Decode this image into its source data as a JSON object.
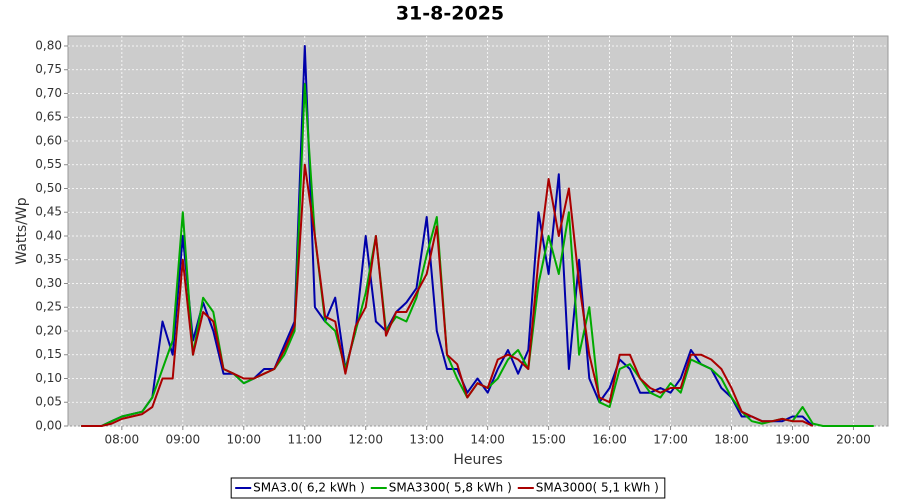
{
  "chart_data": {
    "type": "line",
    "title": "31-8-2025",
    "x_label": "Heures",
    "y_label": "Watts/Wp",
    "grid": true,
    "legend": "bottom",
    "xlim": [
      427,
      1234
    ],
    "ylim": [
      0,
      0.821
    ],
    "xticks": [
      {
        "value": 480,
        "label": "08:00"
      },
      {
        "value": 540,
        "label": "09:00"
      },
      {
        "value": 600,
        "label": "10:00"
      },
      {
        "value": 660,
        "label": "11:00"
      },
      {
        "value": 720,
        "label": "12:00"
      },
      {
        "value": 780,
        "label": "13:00"
      },
      {
        "value": 840,
        "label": "14:00"
      },
      {
        "value": 900,
        "label": "15:00"
      },
      {
        "value": 960,
        "label": "16:00"
      },
      {
        "value": 1020,
        "label": "17:00"
      },
      {
        "value": 1080,
        "label": "18:00"
      },
      {
        "value": 1140,
        "label": "19:00"
      },
      {
        "value": 1200,
        "label": "20:00"
      }
    ],
    "yticks": [
      {
        "value": 0,
        "label": "0,00"
      },
      {
        "value": 0.05,
        "label": "0,05"
      },
      {
        "value": 0.1,
        "label": "0,10"
      },
      {
        "value": 0.15,
        "label": "0,15"
      },
      {
        "value": 0.2,
        "label": "0,20"
      },
      {
        "value": 0.25,
        "label": "0,25"
      },
      {
        "value": 0.3,
        "label": "0,30"
      },
      {
        "value": 0.35,
        "label": "0,35"
      },
      {
        "value": 0.4,
        "label": "0,40"
      },
      {
        "value": 0.45,
        "label": "0,45"
      },
      {
        "value": 0.5,
        "label": "0,50"
      },
      {
        "value": 0.55,
        "label": "0,55"
      },
      {
        "value": 0.6,
        "label": "0,60"
      },
      {
        "value": 0.65,
        "label": "0,65"
      },
      {
        "value": 0.7,
        "label": "0,70"
      },
      {
        "value": 0.75,
        "label": "0,75"
      },
      {
        "value": 0.8,
        "label": "0,80"
      }
    ],
    "x": [
      440,
      450,
      460,
      470,
      480,
      490,
      500,
      510,
      520,
      530,
      540,
      550,
      560,
      570,
      580,
      590,
      600,
      610,
      620,
      630,
      640,
      650,
      660,
      670,
      680,
      690,
      700,
      710,
      720,
      730,
      740,
      750,
      760,
      770,
      780,
      790,
      800,
      810,
      820,
      830,
      840,
      850,
      860,
      870,
      880,
      890,
      900,
      910,
      920,
      930,
      940,
      950,
      960,
      970,
      980,
      990,
      1000,
      1010,
      1020,
      1030,
      1040,
      1050,
      1060,
      1070,
      1080,
      1090,
      1100,
      1110,
      1120,
      1130,
      1140,
      1150,
      1160,
      1170,
      1180,
      1190,
      1200,
      1210,
      1220
    ],
    "series": [
      {
        "name": "SMA3.0( 6,2 kWh )",
        "color": "#0000aa",
        "values": [
          0,
          0,
          0,
          0.01,
          0.02,
          0.025,
          0.03,
          0.06,
          0.22,
          0.15,
          0.4,
          0.18,
          0.26,
          0.2,
          0.11,
          0.11,
          0.09,
          0.1,
          0.12,
          0.12,
          0.17,
          0.22,
          0.8,
          0.25,
          0.22,
          0.27,
          0.12,
          0.2,
          0.4,
          0.22,
          0.2,
          0.24,
          0.26,
          0.29,
          0.44,
          0.2,
          0.12,
          0.12,
          0.07,
          0.1,
          0.07,
          0.12,
          0.16,
          0.11,
          0.16,
          0.45,
          0.32,
          0.53,
          0.12,
          0.35,
          0.1,
          0.05,
          0.08,
          0.14,
          0.12,
          0.07,
          0.07,
          0.08,
          0.07,
          0.1,
          0.16,
          0.13,
          0.12,
          0.08,
          0.06,
          0.02,
          0.02,
          0.01,
          0.01,
          0.01,
          0.02,
          0.02,
          0,
          null,
          null,
          null,
          null,
          null,
          null
        ]
      },
      {
        "name": "SMA3300( 5,8 kWh )",
        "color": "#00aa00",
        "values": [
          0,
          0,
          0,
          0.01,
          0.02,
          0.025,
          0.03,
          0.06,
          0.12,
          0.18,
          0.45,
          0.15,
          0.27,
          0.24,
          0.12,
          0.11,
          0.09,
          0.1,
          0.11,
          0.12,
          0.15,
          0.2,
          0.72,
          0.4,
          0.22,
          0.2,
          0.12,
          0.2,
          0.28,
          0.4,
          0.2,
          0.23,
          0.22,
          0.27,
          0.36,
          0.44,
          0.15,
          0.1,
          0.06,
          0.09,
          0.08,
          0.1,
          0.14,
          0.16,
          0.12,
          0.3,
          0.4,
          0.32,
          0.45,
          0.15,
          0.25,
          0.05,
          0.04,
          0.12,
          0.13,
          0.1,
          0.07,
          0.06,
          0.09,
          0.07,
          0.14,
          0.13,
          0.12,
          0.1,
          0.06,
          0.03,
          0.01,
          0.005,
          0.01,
          0.015,
          0.01,
          0.04,
          0.005,
          0,
          0,
          0,
          0,
          0,
          0
        ]
      },
      {
        "name": "SMA3000( 5,1 kWh )",
        "color": "#aa0000",
        "values": [
          0,
          0,
          0,
          0.005,
          0.015,
          0.02,
          0.025,
          0.04,
          0.1,
          0.1,
          0.35,
          0.15,
          0.24,
          0.22,
          0.12,
          0.11,
          0.1,
          0.1,
          0.11,
          0.12,
          0.16,
          0.21,
          0.55,
          0.4,
          0.23,
          0.22,
          0.11,
          0.21,
          0.25,
          0.4,
          0.19,
          0.24,
          0.24,
          0.28,
          0.32,
          0.42,
          0.15,
          0.13,
          0.06,
          0.09,
          0.08,
          0.14,
          0.15,
          0.14,
          0.12,
          0.35,
          0.52,
          0.4,
          0.5,
          0.3,
          0.15,
          0.06,
          0.05,
          0.15,
          0.15,
          0.1,
          0.08,
          0.07,
          0.08,
          0.08,
          0.15,
          0.15,
          0.14,
          0.12,
          0.08,
          0.03,
          0.02,
          0.01,
          0.01,
          0.015,
          0.01,
          0.01,
          0,
          null,
          null,
          null,
          null,
          null,
          null
        ]
      }
    ]
  }
}
